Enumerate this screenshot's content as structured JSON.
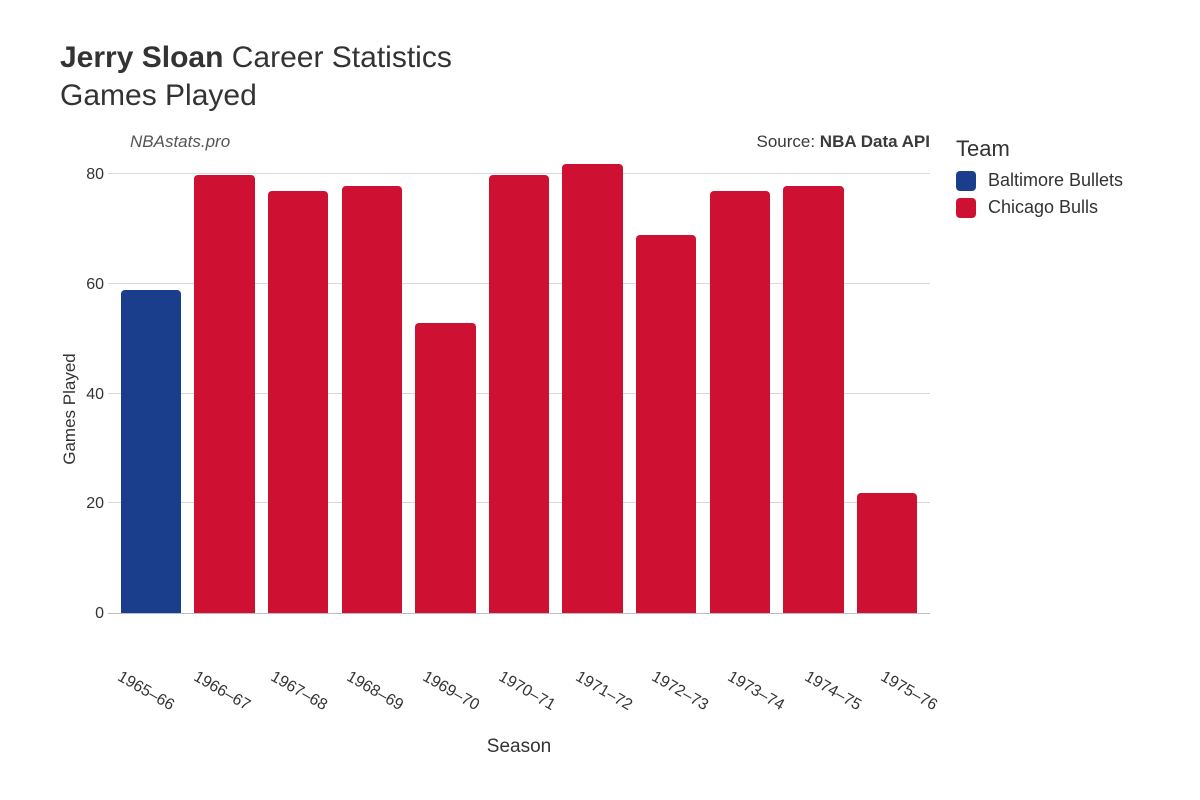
{
  "title": {
    "player_name": "Jerry Sloan",
    "suffix": "Career Statistics",
    "subtitle": "Games Played"
  },
  "credits": {
    "watermark": "NBAstats.pro",
    "source_prefix": "Source: ",
    "source_name": "NBA Data API"
  },
  "legend": {
    "title": "Team",
    "items": [
      {
        "label": "Baltimore Bullets",
        "color": "#1a3e8b"
      },
      {
        "label": "Chicago Bulls",
        "color": "#ce1032"
      }
    ]
  },
  "chart": {
    "type": "bar",
    "xlabel": "Season",
    "ylabel": "Games Played",
    "ylim": [
      0,
      82
    ],
    "ytick_step": 20,
    "yticks": [
      0,
      20,
      40,
      60,
      80
    ],
    "background_color": "#ffffff",
    "grid_color": "#d9d9d9",
    "axis_color": "#bdbdbd",
    "bar_width_ratio": 0.82,
    "bar_border_radius": 4,
    "tick_fontsize_pt": 12,
    "label_fontsize_pt": 14,
    "xtick_rotation_deg": 30,
    "categories": [
      "1965–66",
      "1966–67",
      "1967–68",
      "1968–69",
      "1969–70",
      "1970–71",
      "1971–72",
      "1972–73",
      "1973–74",
      "1974–75",
      "1975–76"
    ],
    "values": [
      59,
      80,
      77,
      78,
      53,
      80,
      82,
      69,
      77,
      78,
      22
    ],
    "bar_colors": [
      "#1a3e8b",
      "#ce1032",
      "#ce1032",
      "#ce1032",
      "#ce1032",
      "#ce1032",
      "#ce1032",
      "#ce1032",
      "#ce1032",
      "#ce1032",
      "#ce1032"
    ]
  }
}
